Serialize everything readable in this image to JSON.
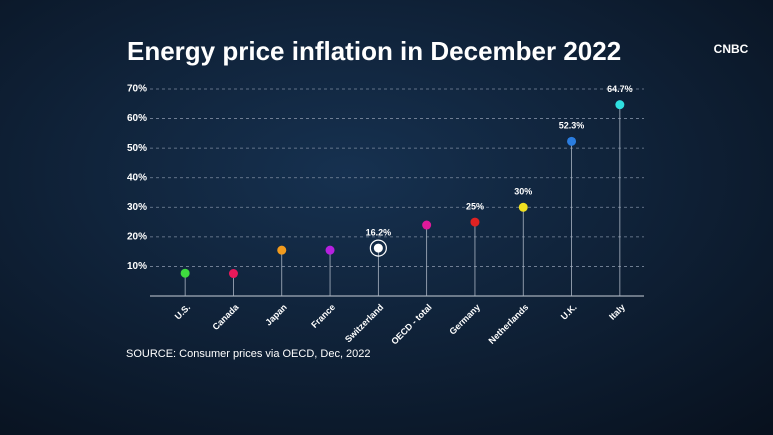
{
  "logo": "CNBC",
  "chart_data": {
    "type": "lollipop",
    "title": "Energy price inflation in December 2022",
    "categories": [
      "U.S.",
      "Canada",
      "Japan",
      "France",
      "Switzerland",
      "OECD - total",
      "Germany",
      "Netherlands",
      "U.K.",
      "Italy"
    ],
    "values": [
      7.7,
      7.6,
      15.5,
      15.5,
      16.2,
      24,
      25,
      30,
      52.3,
      64.7
    ],
    "value_labels": [
      null,
      null,
      null,
      null,
      "16.2%",
      null,
      "25%",
      "30%",
      "52.3%",
      "64.7%"
    ],
    "colors": [
      "#3fdc3f",
      "#e8195a",
      "#f29b1d",
      "#b620e0",
      "#ffffff",
      "#e0199a",
      "#e02222",
      "#f0e020",
      "#2a7de0",
      "#2fe0e0"
    ],
    "ylim": [
      0,
      70
    ],
    "yticks": [
      {
        "value": 10,
        "label": "10%"
      },
      {
        "value": 20,
        "label": "20%"
      },
      {
        "value": 30,
        "label": "30%"
      },
      {
        "value": 40,
        "label": "40%"
      },
      {
        "value": 50,
        "label": "50%"
      },
      {
        "value": 60,
        "label": "60%"
      },
      {
        "value": 70,
        "label": "70%"
      }
    ],
    "grid": true,
    "source": "SOURCE: Consumer prices via OECD, Dec, 2022"
  }
}
